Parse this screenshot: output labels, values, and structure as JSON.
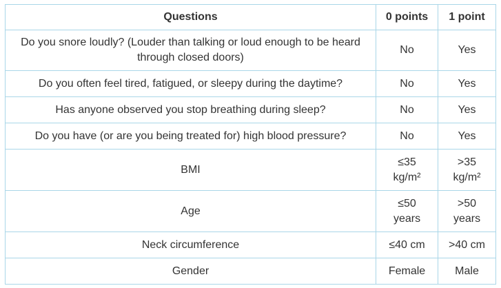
{
  "table": {
    "header": [
      "Questions",
      "0 points",
      "1 point"
    ],
    "rows": [
      [
        "Do you snore loudly? (Louder than talking or loud enough to be heard\nthrough closed doors)",
        "No",
        "Yes"
      ],
      [
        "Do you often feel tired, fatigued, or sleepy during the daytime?",
        "No",
        "Yes"
      ],
      [
        "Has anyone observed you stop breathing during sleep?",
        "No",
        "Yes"
      ],
      [
        "Do you have (or are you being treated for) high blood pressure?",
        "No",
        "Yes"
      ],
      [
        "BMI",
        "≤35\nkg/m²",
        ">35\nkg/m²"
      ],
      [
        "Age",
        "≤50\nyears",
        ">50\nyears"
      ],
      [
        "Neck circumference",
        "≤40 cm",
        ">40 cm"
      ],
      [
        "Gender",
        "Female",
        "Male"
      ]
    ]
  }
}
